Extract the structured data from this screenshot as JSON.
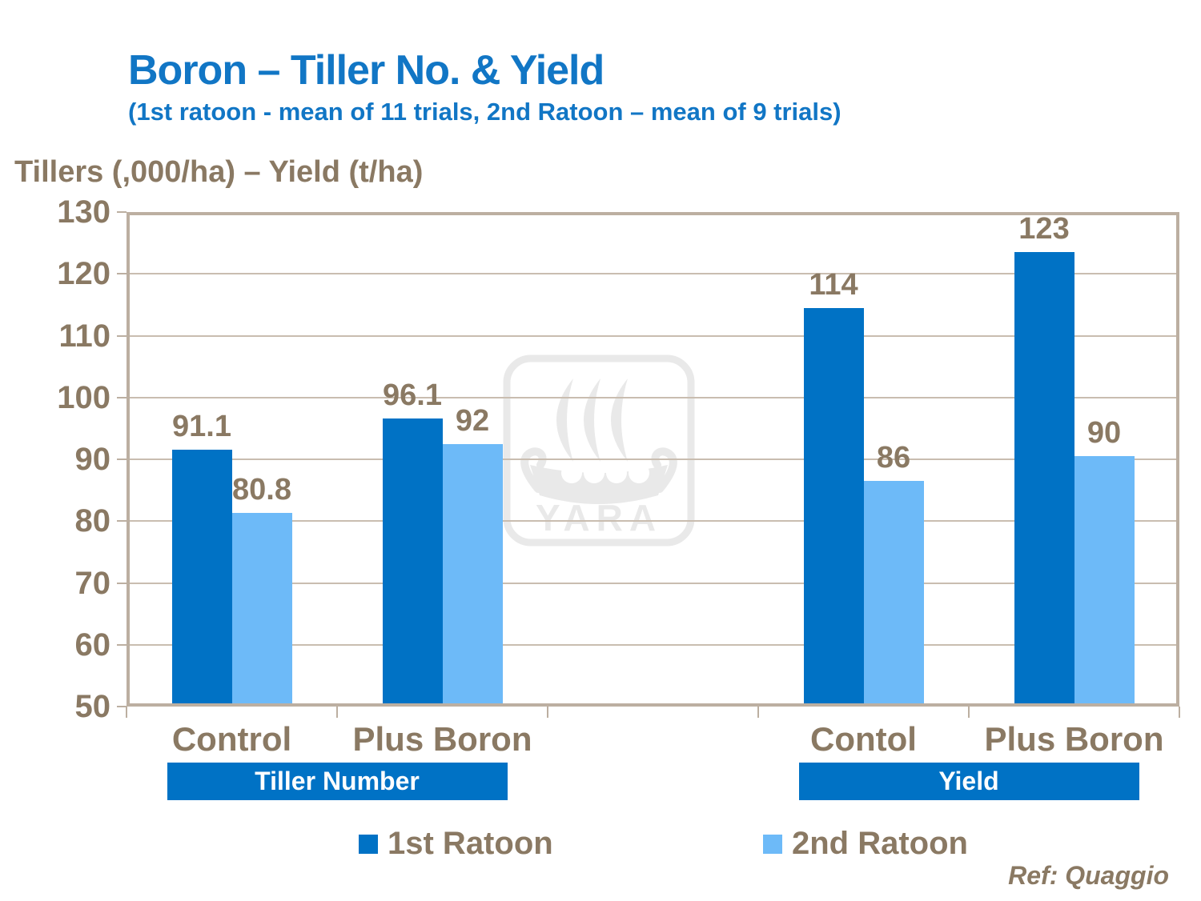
{
  "header": {
    "title": "Boron – Tiller No. & Yield",
    "subtitle": "(1st ratoon - mean of 11 trials, 2nd Ratoon – mean of 9 trials)"
  },
  "footer": {
    "reference": "Ref: Quaggio"
  },
  "watermark": {
    "label": "YARA"
  },
  "colors": {
    "title_blue": "#1176C5",
    "bar_dark_blue": "#0072C5",
    "bar_light_blue": "#6DBAF8",
    "text_brown": "#8A7963",
    "axis_tan": "#BCAFA1",
    "gridline_tan": "#C9BDB0",
    "band_blue": "#0072C5",
    "band_text": "#FFFFFF",
    "watermark_gray": "#E9E9E9"
  },
  "chart_data": {
    "type": "bar",
    "title": "Boron – Tiller No. & Yield",
    "subtitle": "(1st ratoon - mean of 11 trials, 2nd Ratoon – mean of 9 trials)",
    "axis_title": "Tillers (,000/ha) – Yield (t/ha)",
    "ylim": [
      50,
      130
    ],
    "y_ticks": [
      50,
      60,
      70,
      80,
      90,
      100,
      110,
      120,
      130
    ],
    "grid": true,
    "data_labels": true,
    "legend_position": "bottom",
    "series": [
      {
        "name": "1st Ratoon",
        "color": "#0072C5"
      },
      {
        "name": "2nd Ratoon",
        "color": "#6DBAF8"
      }
    ],
    "groups": [
      {
        "band_label": "Tiller Number",
        "categories": [
          {
            "label": "Control",
            "values": [
              91.1,
              80.8
            ]
          },
          {
            "label": "Plus Boron",
            "values": [
              96.1,
              92
            ]
          }
        ]
      },
      {
        "band_label": "Yield",
        "categories": [
          {
            "label": "Contol",
            "values": [
              114,
              86
            ]
          },
          {
            "label": "Plus Boron",
            "values": [
              123,
              90
            ]
          }
        ]
      }
    ]
  }
}
